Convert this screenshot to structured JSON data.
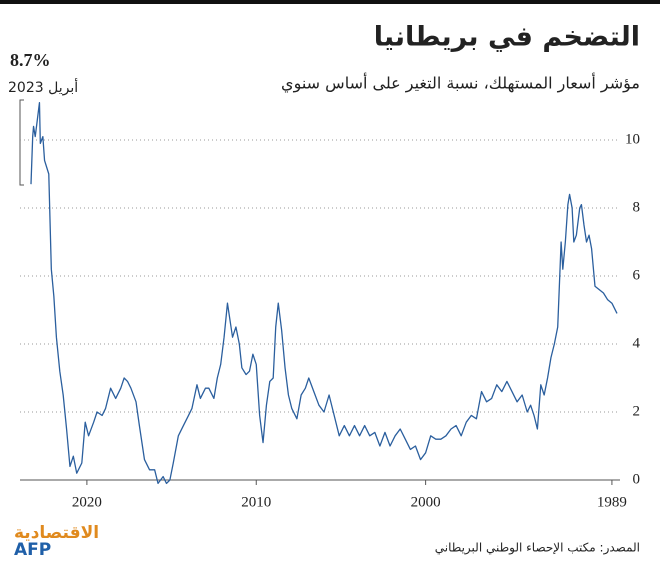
{
  "chart_data": {
    "type": "line",
    "title": "التضخم في بريطانيا",
    "subtitle": "مؤشر أسعار المستهلك، نسبة التغير على أساس سنوي",
    "annotation": {
      "value": "8.7%",
      "date": "أبريل 2023"
    },
    "source": "المصدر: مكتب الإحصاء الوطني البريطاني",
    "logo": {
      "brand": "الاقتصادية",
      "agency": "AFP"
    },
    "color": "#2b5f9e",
    "grid": true,
    "x_reversed": true,
    "xlim": [
      2023.3,
      1988.7
    ],
    "xticks": [
      2020,
      2010,
      2000,
      1989
    ],
    "ylim": [
      -0.3,
      11.5
    ],
    "yticks": [
      0,
      2,
      4,
      6,
      8,
      10
    ],
    "x": [
      1988.7,
      1989.0,
      1989.25,
      1989.5,
      1989.75,
      1990.0,
      1990.2,
      1990.35,
      1990.5,
      1990.65,
      1990.8,
      1990.9,
      1991.1,
      1991.25,
      1991.35,
      1991.5,
      1991.6,
      1991.75,
      1991.9,
      1992.0,
      1992.2,
      1992.4,
      1992.6,
      1992.8,
      1993.0,
      1993.2,
      1993.4,
      1993.6,
      1993.8,
      1994.0,
      1994.3,
      1994.6,
      1994.9,
      1995.2,
      1995.5,
      1995.8,
      1996.1,
      1996.4,
      1996.7,
      1997.0,
      1997.3,
      1997.6,
      1997.9,
      1998.2,
      1998.5,
      1998.8,
      1999.1,
      1999.4,
      1999.7,
      2000.0,
      2000.3,
      2000.6,
      2000.9,
      2001.2,
      2001.5,
      2001.8,
      2002.1,
      2002.4,
      2002.7,
      2003.0,
      2003.3,
      2003.6,
      2003.9,
      2004.2,
      2004.5,
      2004.8,
      2005.1,
      2005.4,
      2005.7,
      2006.0,
      2006.3,
      2006.6,
      2006.9,
      2007.1,
      2007.35,
      2007.6,
      2007.9,
      2008.1,
      2008.3,
      2008.5,
      2008.7,
      2008.85,
      2009.0,
      2009.2,
      2009.4,
      2009.6,
      2009.8,
      2010.0,
      2010.2,
      2010.4,
      2010.6,
      2010.85,
      2011.0,
      2011.2,
      2011.4,
      2011.7,
      2011.9,
      2012.1,
      2012.3,
      2012.5,
      2012.8,
      2013.0,
      2013.3,
      2013.5,
      2013.8,
      2014.0,
      2014.3,
      2014.6,
      2014.9,
      2015.1,
      2015.3,
      2015.5,
      2015.8,
      2016.0,
      2016.3,
      2016.6,
      2016.9,
      2017.1,
      2017.4,
      2017.6,
      2017.8,
      2018.0,
      2018.3,
      2018.6,
      2018.9,
      2019.1,
      2019.4,
      2019.6,
      2019.9,
      2020.1,
      2020.3,
      2020.6,
      2020.8,
      2021.0,
      2021.2,
      2021.4,
      2021.6,
      2021.8,
      2021.95,
      2022.1,
      2022.25,
      2022.5,
      2022.6,
      2022.75,
      2022.8,
      2022.95,
      2023.05,
      2023.15,
      2023.2,
      2023.3
    ],
    "values": [
      4.9,
      5.2,
      5.3,
      5.5,
      5.6,
      5.7,
      6.8,
      7.2,
      7.0,
      7.5,
      8.1,
      8.0,
      7.2,
      7.0,
      8.0,
      8.4,
      8.1,
      7.0,
      6.2,
      7.0,
      4.5,
      4.0,
      3.6,
      3.0,
      2.5,
      2.8,
      1.5,
      1.9,
      2.2,
      2.0,
      2.5,
      2.3,
      2.6,
      2.9,
      2.6,
      2.8,
      2.4,
      2.3,
      2.6,
      1.8,
      1.9,
      1.7,
      1.3,
      1.6,
      1.5,
      1.3,
      1.2,
      1.2,
      1.3,
      0.8,
      0.6,
      1.0,
      0.9,
      1.2,
      1.5,
      1.3,
      1.0,
      1.4,
      1.0,
      1.4,
      1.3,
      1.6,
      1.3,
      1.6,
      1.3,
      1.6,
      1.3,
      1.9,
      2.5,
      2.0,
      2.2,
      2.6,
      3.0,
      2.7,
      2.5,
      1.8,
      2.1,
      2.5,
      3.3,
      4.4,
      5.2,
      4.5,
      3.0,
      2.9,
      2.2,
      1.1,
      1.9,
      3.4,
      3.7,
      3.2,
      3.1,
      3.3,
      4.0,
      4.5,
      4.2,
      5.2,
      4.2,
      3.4,
      3.0,
      2.4,
      2.7,
      2.7,
      2.4,
      2.8,
      2.1,
      1.9,
      1.6,
      1.3,
      0.5,
      0.0,
      -0.1,
      0.1,
      -0.1,
      0.3,
      0.3,
      0.6,
      1.6,
      2.3,
      2.7,
      2.9,
      3.0,
      2.7,
      2.4,
      2.7,
      2.1,
      1.9,
      2.0,
      1.7,
      1.3,
      1.7,
      0.5,
      0.2,
      0.7,
      0.4,
      1.5,
      2.5,
      3.2,
      4.2,
      5.4,
      6.2,
      9.0,
      9.4,
      10.1,
      9.9,
      11.1,
      10.5,
      10.1,
      10.4,
      10.1,
      8.7
    ]
  }
}
